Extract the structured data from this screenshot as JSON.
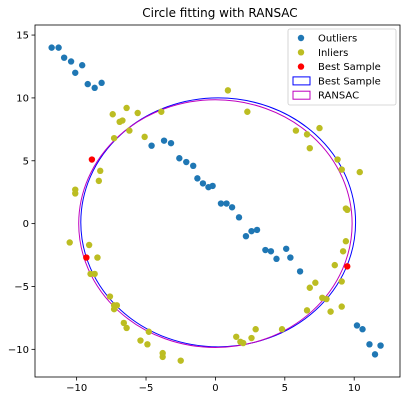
{
  "chart_data": {
    "type": "scatter",
    "title": "Circle fitting with RANSAC",
    "xlabel": "",
    "ylabel": "",
    "xlim": [
      -13,
      13.3
    ],
    "ylim": [
      -12.2,
      15.8
    ],
    "xticks": [
      -10,
      -5,
      0,
      5,
      10
    ],
    "yticks": [
      -10,
      -5,
      0,
      5,
      10,
      15
    ],
    "x_tick_labels": [
      "−10",
      "−5",
      "0",
      "5",
      "10"
    ],
    "y_tick_labels": [
      "−10",
      "−5",
      "0",
      "5",
      "10",
      "15"
    ],
    "grid": false,
    "legend_placement": "top-right",
    "legend": [
      {
        "label": "Outliers",
        "kind": "marker",
        "color": "#1f77b4"
      },
      {
        "label": "Inliers",
        "kind": "marker",
        "color": "#bcbd22"
      },
      {
        "label": "Best Sample",
        "kind": "marker",
        "color": "#ff0000"
      },
      {
        "label": "Best Sample",
        "kind": "circle",
        "color": "#0000ff"
      },
      {
        "label": "RANSAC",
        "kind": "circle",
        "color": "#bf00bf"
      }
    ],
    "colors": {
      "outliers": "#1f77b4",
      "inliers": "#bcbd22",
      "best_sample_points": "#ff0000",
      "best_sample_circle": "#0000ff",
      "ransac_circle": "#bf00bf"
    },
    "series": [
      {
        "name": "Outliers",
        "kind": "points",
        "points": [
          [
            -11.8,
            14.0
          ],
          [
            -11.3,
            14.0
          ],
          [
            -10.9,
            13.2
          ],
          [
            -10.4,
            12.9
          ],
          [
            -10.1,
            12.0
          ],
          [
            -9.6,
            12.6
          ],
          [
            -9.2,
            11.1
          ],
          [
            -8.7,
            10.8
          ],
          [
            -8.2,
            11.2
          ],
          [
            -4.6,
            6.2
          ],
          [
            -3.7,
            6.6
          ],
          [
            -3.2,
            6.4
          ],
          [
            -2.6,
            5.2
          ],
          [
            -2.1,
            4.9
          ],
          [
            -1.6,
            4.6
          ],
          [
            -1.3,
            3.6
          ],
          [
            -0.9,
            3.2
          ],
          [
            -0.5,
            2.9
          ],
          [
            -0.2,
            3.0
          ],
          [
            0.4,
            1.6
          ],
          [
            0.8,
            1.6
          ],
          [
            1.2,
            1.3
          ],
          [
            1.7,
            0.5
          ],
          [
            2.2,
            -1.0
          ],
          [
            2.6,
            -0.6
          ],
          [
            3.0,
            -0.5
          ],
          [
            3.6,
            -2.1
          ],
          [
            4.0,
            -2.2
          ],
          [
            4.4,
            -2.8
          ],
          [
            5.1,
            -2.0
          ],
          [
            5.4,
            -2.7
          ],
          [
            6.1,
            -3.8
          ],
          [
            10.2,
            -8.1
          ],
          [
            10.6,
            -8.4
          ],
          [
            11.1,
            -9.6
          ],
          [
            11.5,
            -10.4
          ],
          [
            11.9,
            -9.7
          ]
        ]
      },
      {
        "name": "Inliers",
        "kind": "points",
        "points": [
          [
            -7.4,
            8.7
          ],
          [
            -6.9,
            8.1
          ],
          [
            -6.4,
            9.2
          ],
          [
            -6.2,
            7.4
          ],
          [
            -5.6,
            8.8
          ],
          [
            -5.1,
            6.9
          ],
          [
            -3.9,
            8.9
          ],
          [
            -6.7,
            8.2
          ],
          [
            -7.3,
            6.8
          ],
          [
            -8.3,
            4.2
          ],
          [
            -8.4,
            3.4
          ],
          [
            -10.1,
            2.7
          ],
          [
            -10.1,
            2.4
          ],
          [
            -10.5,
            -1.5
          ],
          [
            -9.1,
            -1.7
          ],
          [
            -9.0,
            -4.0
          ],
          [
            -8.7,
            -4.0
          ],
          [
            -8.5,
            -2.7
          ],
          [
            -7.6,
            -5.8
          ],
          [
            -7.3,
            -6.5
          ],
          [
            -7.1,
            -6.5
          ],
          [
            -7.3,
            -6.8
          ],
          [
            -6.6,
            -7.9
          ],
          [
            -6.4,
            -8.3
          ],
          [
            -5.4,
            -9.3
          ],
          [
            -4.9,
            -9.6
          ],
          [
            -4.8,
            -8.6
          ],
          [
            -3.8,
            -10.3
          ],
          [
            -2.5,
            -10.9
          ],
          [
            -3.8,
            -10.6
          ],
          [
            1.5,
            -9.0
          ],
          [
            1.8,
            -9.4
          ],
          [
            2.0,
            -9.5
          ],
          [
            2.9,
            -8.4
          ],
          [
            2.6,
            -9.1
          ],
          [
            4.8,
            -8.4
          ],
          [
            6.6,
            -6.9
          ],
          [
            6.8,
            -5.1
          ],
          [
            7.2,
            -4.7
          ],
          [
            7.7,
            -5.9
          ],
          [
            8.0,
            -6.0
          ],
          [
            8.3,
            -7.0
          ],
          [
            8.6,
            -3.3
          ],
          [
            9.1,
            -6.6
          ],
          [
            9.1,
            -4.6
          ],
          [
            9.4,
            -1.4
          ],
          [
            9.2,
            -2.2
          ],
          [
            9.4,
            1.2
          ],
          [
            9.5,
            1.1
          ],
          [
            10.4,
            4.1
          ],
          [
            9.1,
            4.3
          ],
          [
            8.8,
            5.1
          ],
          [
            7.5,
            7.6
          ],
          [
            6.6,
            7.1
          ],
          [
            5.8,
            7.4
          ],
          [
            6.8,
            6.0
          ],
          [
            2.3,
            8.9
          ],
          [
            0.9,
            10.6
          ]
        ]
      },
      {
        "name": "Best Sample",
        "kind": "points",
        "points": [
          [
            -8.9,
            5.1
          ],
          [
            -9.3,
            -2.7
          ],
          [
            9.5,
            -3.4
          ]
        ]
      },
      {
        "name": "Best Sample",
        "kind": "circle",
        "center": [
          0.2,
          0.1
        ],
        "radius": 9.9
      },
      {
        "name": "RANSAC",
        "kind": "circle",
        "center": [
          0.0,
          0.0
        ],
        "radius": 9.85
      }
    ]
  }
}
